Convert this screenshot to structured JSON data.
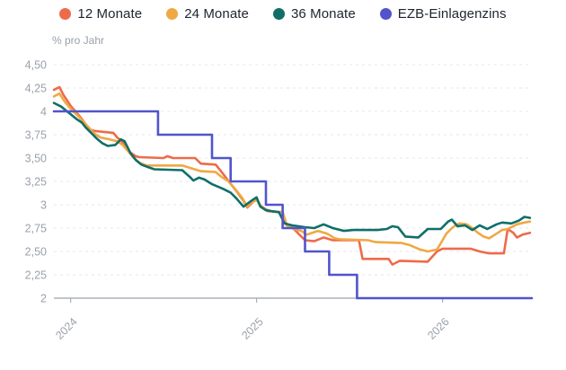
{
  "unit_label": "% pro Jahr",
  "chart_data": {
    "type": "line",
    "title": "",
    "unit_label": "% pro Jahr",
    "legend_position": "top-center",
    "grid": "dashed-horizontal",
    "x_axis": {
      "range": [
        2023.91,
        2026.48
      ],
      "ticks": [
        2024,
        2025,
        2026
      ],
      "tick_labels": [
        "2024",
        "2025",
        "2026"
      ]
    },
    "y_axis": {
      "range": [
        2,
        4.5
      ],
      "ticks": [
        4.5,
        4.25,
        4,
        3.75,
        3.5,
        3.25,
        3,
        2.75,
        2.5,
        2.25,
        2
      ],
      "tick_labels": [
        "4,50",
        "4,25",
        "4",
        "3,75",
        "3,50",
        "3,25",
        "3",
        "2,75",
        "2,50",
        "2,25",
        "2"
      ]
    },
    "series": [
      {
        "name": "12 Monate",
        "color": "#ED6B4B",
        "points": [
          [
            2023.91,
            4.23
          ],
          [
            2023.94,
            4.26
          ],
          [
            2023.96,
            4.18
          ],
          [
            2024.0,
            4.06
          ],
          [
            2024.03,
            3.99
          ],
          [
            2024.06,
            3.92
          ],
          [
            2024.08,
            3.86
          ],
          [
            2024.11,
            3.8
          ],
          [
            2024.13,
            3.79
          ],
          [
            2024.18,
            3.78
          ],
          [
            2024.23,
            3.77
          ],
          [
            2024.25,
            3.72
          ],
          [
            2024.27,
            3.69
          ],
          [
            2024.3,
            3.62
          ],
          [
            2024.32,
            3.56
          ],
          [
            2024.35,
            3.52
          ],
          [
            2024.37,
            3.51
          ],
          [
            2024.5,
            3.5
          ],
          [
            2024.52,
            3.52
          ],
          [
            2024.55,
            3.5
          ],
          [
            2024.67,
            3.5
          ],
          [
            2024.7,
            3.44
          ],
          [
            2024.78,
            3.43
          ],
          [
            2024.82,
            3.33
          ],
          [
            2024.85,
            3.25
          ],
          [
            2024.89,
            3.15
          ],
          [
            2024.93,
            3.04
          ],
          [
            2024.95,
            2.97
          ],
          [
            2024.98,
            3.03
          ],
          [
            2025.0,
            3.06
          ],
          [
            2025.02,
            2.99
          ],
          [
            2025.05,
            2.95
          ],
          [
            2025.08,
            2.93
          ],
          [
            2025.14,
            2.92
          ],
          [
            2025.16,
            2.79
          ],
          [
            2025.19,
            2.76
          ],
          [
            2025.22,
            2.7
          ],
          [
            2025.26,
            2.62
          ],
          [
            2025.31,
            2.61
          ],
          [
            2025.36,
            2.65
          ],
          [
            2025.41,
            2.62
          ],
          [
            2025.55,
            2.62
          ],
          [
            2025.57,
            2.42
          ],
          [
            2025.71,
            2.42
          ],
          [
            2025.73,
            2.36
          ],
          [
            2025.77,
            2.4
          ],
          [
            2025.92,
            2.39
          ],
          [
            2025.97,
            2.5
          ],
          [
            2026.0,
            2.53
          ],
          [
            2026.15,
            2.53
          ],
          [
            2026.2,
            2.5
          ],
          [
            2026.25,
            2.48
          ],
          [
            2026.33,
            2.48
          ],
          [
            2026.35,
            2.74
          ],
          [
            2026.38,
            2.7
          ],
          [
            2026.4,
            2.65
          ],
          [
            2026.43,
            2.68
          ],
          [
            2026.47,
            2.7
          ]
        ]
      },
      {
        "name": "24 Monate",
        "color": "#F0A844",
        "points": [
          [
            2023.91,
            4.16
          ],
          [
            2023.94,
            4.19
          ],
          [
            2023.97,
            4.1
          ],
          [
            2024.0,
            4.03
          ],
          [
            2024.03,
            3.97
          ],
          [
            2024.07,
            3.89
          ],
          [
            2024.1,
            3.82
          ],
          [
            2024.13,
            3.76
          ],
          [
            2024.16,
            3.72
          ],
          [
            2024.21,
            3.7
          ],
          [
            2024.25,
            3.68
          ],
          [
            2024.28,
            3.64
          ],
          [
            2024.31,
            3.57
          ],
          [
            2024.34,
            3.5
          ],
          [
            2024.37,
            3.45
          ],
          [
            2024.41,
            3.42
          ],
          [
            2024.6,
            3.42
          ],
          [
            2024.7,
            3.36
          ],
          [
            2024.78,
            3.35
          ],
          [
            2024.81,
            3.3
          ],
          [
            2024.85,
            3.25
          ],
          [
            2024.88,
            3.18
          ],
          [
            2024.92,
            3.08
          ],
          [
            2024.95,
            2.98
          ],
          [
            2024.97,
            3.02
          ],
          [
            2025.0,
            3.05
          ],
          [
            2025.03,
            2.97
          ],
          [
            2025.06,
            2.93
          ],
          [
            2025.14,
            2.92
          ],
          [
            2025.16,
            2.78
          ],
          [
            2025.2,
            2.74
          ],
          [
            2025.24,
            2.72
          ],
          [
            2025.27,
            2.68
          ],
          [
            2025.33,
            2.72
          ],
          [
            2025.38,
            2.69
          ],
          [
            2025.42,
            2.64
          ],
          [
            2025.45,
            2.63
          ],
          [
            2025.6,
            2.62
          ],
          [
            2025.64,
            2.6
          ],
          [
            2025.78,
            2.59
          ],
          [
            2025.82,
            2.57
          ],
          [
            2025.88,
            2.52
          ],
          [
            2025.92,
            2.5
          ],
          [
            2025.97,
            2.52
          ],
          [
            2026.0,
            2.62
          ],
          [
            2026.02,
            2.69
          ],
          [
            2026.05,
            2.75
          ],
          [
            2026.07,
            2.78
          ],
          [
            2026.09,
            2.8
          ],
          [
            2026.13,
            2.79
          ],
          [
            2026.16,
            2.75
          ],
          [
            2026.19,
            2.7
          ],
          [
            2026.22,
            2.66
          ],
          [
            2026.25,
            2.64
          ],
          [
            2026.29,
            2.69
          ],
          [
            2026.32,
            2.73
          ],
          [
            2026.35,
            2.74
          ],
          [
            2026.4,
            2.79
          ],
          [
            2026.44,
            2.81
          ],
          [
            2026.47,
            2.82
          ]
        ]
      },
      {
        "name": "36 Monate",
        "color": "#0F6F68",
        "points": [
          [
            2023.91,
            4.09
          ],
          [
            2023.95,
            4.05
          ],
          [
            2023.98,
            4.0
          ],
          [
            2024.0,
            3.97
          ],
          [
            2024.03,
            3.92
          ],
          [
            2024.06,
            3.88
          ],
          [
            2024.08,
            3.83
          ],
          [
            2024.11,
            3.77
          ],
          [
            2024.14,
            3.71
          ],
          [
            2024.17,
            3.66
          ],
          [
            2024.2,
            3.63
          ],
          [
            2024.24,
            3.64
          ],
          [
            2024.27,
            3.7
          ],
          [
            2024.29,
            3.68
          ],
          [
            2024.32,
            3.56
          ],
          [
            2024.35,
            3.48
          ],
          [
            2024.38,
            3.43
          ],
          [
            2024.42,
            3.4
          ],
          [
            2024.45,
            3.38
          ],
          [
            2024.6,
            3.37
          ],
          [
            2024.64,
            3.3
          ],
          [
            2024.66,
            3.26
          ],
          [
            2024.69,
            3.29
          ],
          [
            2024.72,
            3.27
          ],
          [
            2024.76,
            3.22
          ],
          [
            2024.82,
            3.17
          ],
          [
            2024.86,
            3.13
          ],
          [
            2024.89,
            3.07
          ],
          [
            2024.93,
            2.98
          ],
          [
            2024.97,
            3.04
          ],
          [
            2025.0,
            3.08
          ],
          [
            2025.02,
            2.98
          ],
          [
            2025.05,
            2.94
          ],
          [
            2025.12,
            2.92
          ],
          [
            2025.15,
            2.8
          ],
          [
            2025.19,
            2.78
          ],
          [
            2025.26,
            2.76
          ],
          [
            2025.31,
            2.75
          ],
          [
            2025.36,
            2.79
          ],
          [
            2025.41,
            2.75
          ],
          [
            2025.47,
            2.72
          ],
          [
            2025.52,
            2.73
          ],
          [
            2025.65,
            2.73
          ],
          [
            2025.7,
            2.74
          ],
          [
            2025.73,
            2.77
          ],
          [
            2025.76,
            2.76
          ],
          [
            2025.8,
            2.66
          ],
          [
            2025.87,
            2.65
          ],
          [
            2025.92,
            2.74
          ],
          [
            2025.99,
            2.74
          ],
          [
            2026.03,
            2.82
          ],
          [
            2026.05,
            2.84
          ],
          [
            2026.08,
            2.77
          ],
          [
            2026.12,
            2.78
          ],
          [
            2026.16,
            2.73
          ],
          [
            2026.2,
            2.78
          ],
          [
            2026.24,
            2.74
          ],
          [
            2026.29,
            2.79
          ],
          [
            2026.32,
            2.81
          ],
          [
            2026.37,
            2.8
          ],
          [
            2026.41,
            2.83
          ],
          [
            2026.44,
            2.87
          ],
          [
            2026.47,
            2.86
          ]
        ]
      },
      {
        "name": "EZB-Einlagenzins",
        "color": "#5154CC",
        "points": [
          [
            2023.91,
            4.0
          ],
          [
            2024.47,
            4.0
          ],
          [
            2024.47,
            3.75
          ],
          [
            2024.76,
            3.75
          ],
          [
            2024.76,
            3.5
          ],
          [
            2024.86,
            3.5
          ],
          [
            2024.86,
            3.25
          ],
          [
            2025.05,
            3.25
          ],
          [
            2025.05,
            3.0
          ],
          [
            2025.14,
            3.0
          ],
          [
            2025.14,
            2.75
          ],
          [
            2025.26,
            2.75
          ],
          [
            2025.26,
            2.5
          ],
          [
            2025.39,
            2.5
          ],
          [
            2025.39,
            2.25
          ],
          [
            2025.54,
            2.25
          ],
          [
            2025.54,
            2.0
          ],
          [
            2026.48,
            2.0
          ]
        ]
      }
    ],
    "style": {
      "axis_line_color": "#9CA3AF",
      "gridline_color": "#E4E7EB",
      "tick_label_color": "#9AA1AB",
      "legend_text_color": "#1E2430",
      "background_color": "#FFFFFF"
    }
  }
}
